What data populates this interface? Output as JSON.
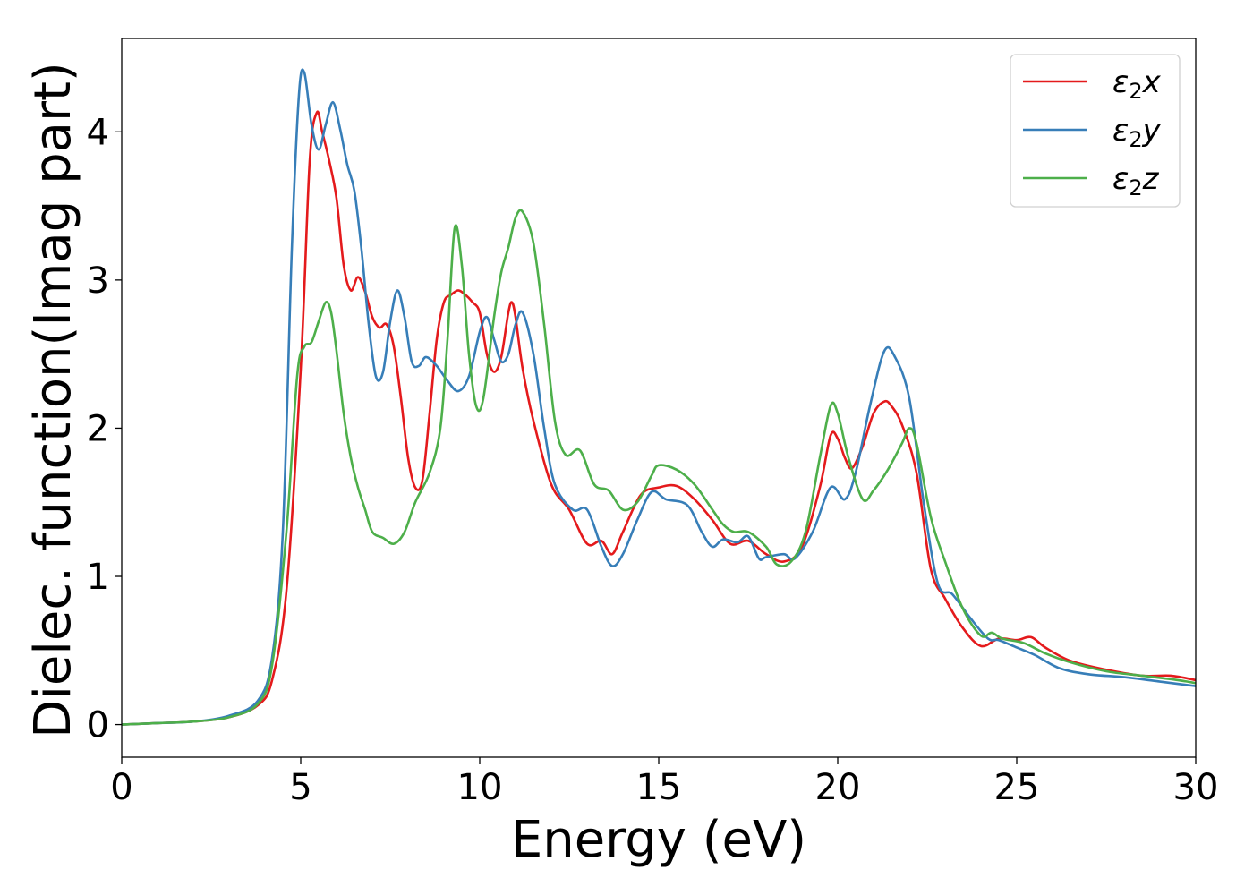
{
  "chart_data": {
    "type": "line",
    "title": "",
    "xlabel": "Energy (eV)",
    "ylabel": "Dielec. function(Imag part)",
    "xlim": [
      0,
      30
    ],
    "ylim": [
      -0.22,
      4.63
    ],
    "xticks": [
      0,
      5,
      10,
      15,
      20,
      25,
      30
    ],
    "yticks": [
      0,
      1,
      2,
      3,
      4
    ],
    "xtick_labels": [
      "0",
      "5",
      "10",
      "15",
      "20",
      "25",
      "30"
    ],
    "ytick_labels": [
      "0",
      "1",
      "2",
      "3",
      "4"
    ],
    "grid": false,
    "legend_position": "top-right",
    "series": [
      {
        "name": "ε2x",
        "legend_base": "ε",
        "legend_sub": "2",
        "legend_suffix": "x",
        "color": "#e41a1c",
        "points": [
          [
            0,
            0
          ],
          [
            1,
            0.01
          ],
          [
            2,
            0.02
          ],
          [
            3,
            0.05
          ],
          [
            3.8,
            0.13
          ],
          [
            4.2,
            0.3
          ],
          [
            4.6,
            0.9
          ],
          [
            5.0,
            2.4
          ],
          [
            5.25,
            3.8
          ],
          [
            5.45,
            4.13
          ],
          [
            5.6,
            4.0
          ],
          [
            5.8,
            3.8
          ],
          [
            6.0,
            3.55
          ],
          [
            6.2,
            3.1
          ],
          [
            6.4,
            2.93
          ],
          [
            6.6,
            3.02
          ],
          [
            6.8,
            2.92
          ],
          [
            7.0,
            2.75
          ],
          [
            7.2,
            2.68
          ],
          [
            7.4,
            2.7
          ],
          [
            7.6,
            2.55
          ],
          [
            7.8,
            2.2
          ],
          [
            8.0,
            1.8
          ],
          [
            8.2,
            1.6
          ],
          [
            8.4,
            1.65
          ],
          [
            8.6,
            2.1
          ],
          [
            8.8,
            2.6
          ],
          [
            9.0,
            2.85
          ],
          [
            9.2,
            2.9
          ],
          [
            9.4,
            2.93
          ],
          [
            9.6,
            2.9
          ],
          [
            9.8,
            2.85
          ],
          [
            10.0,
            2.78
          ],
          [
            10.2,
            2.5
          ],
          [
            10.4,
            2.38
          ],
          [
            10.6,
            2.48
          ],
          [
            10.8,
            2.78
          ],
          [
            10.9,
            2.85
          ],
          [
            11.0,
            2.75
          ],
          [
            11.2,
            2.4
          ],
          [
            11.5,
            2.05
          ],
          [
            12.0,
            1.62
          ],
          [
            12.5,
            1.45
          ],
          [
            13.0,
            1.22
          ],
          [
            13.4,
            1.24
          ],
          [
            13.7,
            1.15
          ],
          [
            14.0,
            1.3
          ],
          [
            14.5,
            1.55
          ],
          [
            15.0,
            1.6
          ],
          [
            15.5,
            1.61
          ],
          [
            16.0,
            1.52
          ],
          [
            16.5,
            1.38
          ],
          [
            17.0,
            1.22
          ],
          [
            17.5,
            1.24
          ],
          [
            18.0,
            1.15
          ],
          [
            18.5,
            1.1
          ],
          [
            19.0,
            1.2
          ],
          [
            19.5,
            1.6
          ],
          [
            19.8,
            1.95
          ],
          [
            20.0,
            1.93
          ],
          [
            20.2,
            1.8
          ],
          [
            20.4,
            1.73
          ],
          [
            20.7,
            1.88
          ],
          [
            21.0,
            2.1
          ],
          [
            21.3,
            2.18
          ],
          [
            21.5,
            2.15
          ],
          [
            21.8,
            2.02
          ],
          [
            22.2,
            1.7
          ],
          [
            22.6,
            1.05
          ],
          [
            23.0,
            0.85
          ],
          [
            23.5,
            0.65
          ],
          [
            24.0,
            0.53
          ],
          [
            24.5,
            0.58
          ],
          [
            25.0,
            0.57
          ],
          [
            25.4,
            0.59
          ],
          [
            25.8,
            0.52
          ],
          [
            26.5,
            0.43
          ],
          [
            27.5,
            0.37
          ],
          [
            28.5,
            0.33
          ],
          [
            29.3,
            0.33
          ],
          [
            30,
            0.3
          ]
        ]
      },
      {
        "name": "ε2y",
        "legend_base": "ε",
        "legend_sub": "2",
        "legend_suffix": "y",
        "color": "#377eb8",
        "points": [
          [
            0,
            0
          ],
          [
            1,
            0.01
          ],
          [
            2,
            0.02
          ],
          [
            3,
            0.06
          ],
          [
            3.8,
            0.16
          ],
          [
            4.2,
            0.45
          ],
          [
            4.5,
            1.3
          ],
          [
            4.75,
            3.2
          ],
          [
            4.95,
            4.25
          ],
          [
            5.1,
            4.4
          ],
          [
            5.3,
            4.05
          ],
          [
            5.5,
            3.88
          ],
          [
            5.7,
            4.05
          ],
          [
            5.9,
            4.2
          ],
          [
            6.1,
            4.02
          ],
          [
            6.3,
            3.78
          ],
          [
            6.5,
            3.6
          ],
          [
            6.7,
            3.2
          ],
          [
            6.9,
            2.7
          ],
          [
            7.1,
            2.35
          ],
          [
            7.3,
            2.38
          ],
          [
            7.5,
            2.72
          ],
          [
            7.7,
            2.93
          ],
          [
            7.9,
            2.75
          ],
          [
            8.1,
            2.45
          ],
          [
            8.3,
            2.42
          ],
          [
            8.5,
            2.48
          ],
          [
            8.8,
            2.42
          ],
          [
            9.1,
            2.32
          ],
          [
            9.4,
            2.25
          ],
          [
            9.7,
            2.35
          ],
          [
            10.0,
            2.65
          ],
          [
            10.2,
            2.75
          ],
          [
            10.4,
            2.6
          ],
          [
            10.6,
            2.45
          ],
          [
            10.8,
            2.5
          ],
          [
            11.0,
            2.7
          ],
          [
            11.2,
            2.78
          ],
          [
            11.5,
            2.5
          ],
          [
            11.8,
            2.0
          ],
          [
            12.1,
            1.62
          ],
          [
            12.6,
            1.45
          ],
          [
            13.0,
            1.45
          ],
          [
            13.4,
            1.2
          ],
          [
            13.7,
            1.07
          ],
          [
            14.0,
            1.15
          ],
          [
            14.4,
            1.38
          ],
          [
            14.8,
            1.57
          ],
          [
            15.2,
            1.52
          ],
          [
            15.8,
            1.48
          ],
          [
            16.2,
            1.3
          ],
          [
            16.5,
            1.2
          ],
          [
            16.8,
            1.25
          ],
          [
            17.2,
            1.23
          ],
          [
            17.5,
            1.27
          ],
          [
            17.8,
            1.12
          ],
          [
            18.0,
            1.13
          ],
          [
            18.5,
            1.15
          ],
          [
            18.8,
            1.12
          ],
          [
            19.3,
            1.3
          ],
          [
            19.8,
            1.6
          ],
          [
            20.2,
            1.52
          ],
          [
            20.5,
            1.7
          ],
          [
            20.9,
            2.15
          ],
          [
            21.3,
            2.52
          ],
          [
            21.6,
            2.48
          ],
          [
            22.0,
            2.2
          ],
          [
            22.4,
            1.5
          ],
          [
            22.8,
            0.95
          ],
          [
            23.2,
            0.88
          ],
          [
            23.7,
            0.72
          ],
          [
            24.2,
            0.58
          ],
          [
            24.5,
            0.57
          ],
          [
            25.0,
            0.52
          ],
          [
            25.5,
            0.47
          ],
          [
            26.2,
            0.38
          ],
          [
            27.0,
            0.34
          ],
          [
            28.0,
            0.32
          ],
          [
            29.0,
            0.29
          ],
          [
            30,
            0.26
          ]
        ]
      },
      {
        "name": "ε2z",
        "legend_base": "ε",
        "legend_sub": "2",
        "legend_suffix": "z",
        "color": "#4daf4a",
        "points": [
          [
            0,
            0
          ],
          [
            1,
            0.01
          ],
          [
            2,
            0.02
          ],
          [
            3,
            0.05
          ],
          [
            3.8,
            0.14
          ],
          [
            4.2,
            0.4
          ],
          [
            4.6,
            1.3
          ],
          [
            4.9,
            2.35
          ],
          [
            5.1,
            2.55
          ],
          [
            5.3,
            2.58
          ],
          [
            5.5,
            2.72
          ],
          [
            5.7,
            2.85
          ],
          [
            5.85,
            2.78
          ],
          [
            6.0,
            2.52
          ],
          [
            6.2,
            2.1
          ],
          [
            6.4,
            1.8
          ],
          [
            6.6,
            1.6
          ],
          [
            6.8,
            1.45
          ],
          [
            7.0,
            1.3
          ],
          [
            7.3,
            1.26
          ],
          [
            7.6,
            1.22
          ],
          [
            7.9,
            1.3
          ],
          [
            8.2,
            1.5
          ],
          [
            8.6,
            1.7
          ],
          [
            8.9,
            2.0
          ],
          [
            9.1,
            2.6
          ],
          [
            9.3,
            3.35
          ],
          [
            9.5,
            3.1
          ],
          [
            9.7,
            2.5
          ],
          [
            9.9,
            2.15
          ],
          [
            10.1,
            2.2
          ],
          [
            10.4,
            2.75
          ],
          [
            10.6,
            3.05
          ],
          [
            10.8,
            3.22
          ],
          [
            11.0,
            3.42
          ],
          [
            11.2,
            3.46
          ],
          [
            11.5,
            3.25
          ],
          [
            11.8,
            2.7
          ],
          [
            12.1,
            2.05
          ],
          [
            12.4,
            1.82
          ],
          [
            12.8,
            1.85
          ],
          [
            13.2,
            1.62
          ],
          [
            13.6,
            1.58
          ],
          [
            14.0,
            1.45
          ],
          [
            14.4,
            1.5
          ],
          [
            14.8,
            1.68
          ],
          [
            15.0,
            1.75
          ],
          [
            15.5,
            1.72
          ],
          [
            16.0,
            1.62
          ],
          [
            16.5,
            1.45
          ],
          [
            16.8,
            1.35
          ],
          [
            17.1,
            1.3
          ],
          [
            17.5,
            1.3
          ],
          [
            18.0,
            1.2
          ],
          [
            18.3,
            1.08
          ],
          [
            18.7,
            1.1
          ],
          [
            19.1,
            1.3
          ],
          [
            19.5,
            1.8
          ],
          [
            19.8,
            2.15
          ],
          [
            20.0,
            2.1
          ],
          [
            20.3,
            1.8
          ],
          [
            20.7,
            1.52
          ],
          [
            21.0,
            1.58
          ],
          [
            21.4,
            1.72
          ],
          [
            21.8,
            1.9
          ],
          [
            22.0,
            2.0
          ],
          [
            22.2,
            1.9
          ],
          [
            22.6,
            1.4
          ],
          [
            23.0,
            1.1
          ],
          [
            23.5,
            0.78
          ],
          [
            24.0,
            0.6
          ],
          [
            24.3,
            0.62
          ],
          [
            24.6,
            0.58
          ],
          [
            25.2,
            0.55
          ],
          [
            25.8,
            0.48
          ],
          [
            26.5,
            0.42
          ],
          [
            27.5,
            0.36
          ],
          [
            28.5,
            0.33
          ],
          [
            29.5,
            0.3
          ],
          [
            30,
            0.28
          ]
        ]
      }
    ]
  }
}
